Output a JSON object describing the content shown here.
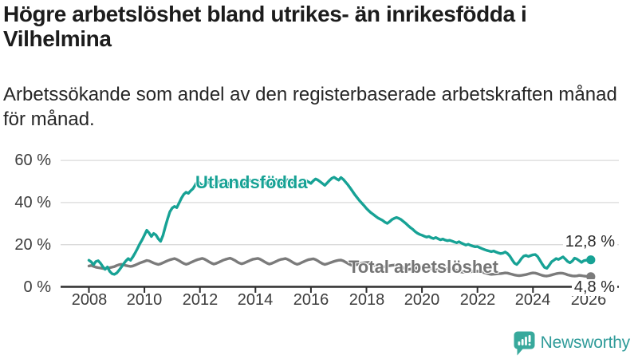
{
  "header": {
    "title_line1": "Högre arbetslöshet bland utrikes- än inrikesfödda i",
    "title_line2": "Vilhelmina",
    "subtitle_line1": "Arbetssökande som andel av den registerbaserade arbetskraften månad",
    "subtitle_line2": "för månad."
  },
  "footer": {
    "brand": "Newsworthy"
  },
  "colors": {
    "accent_teal": "#17a295",
    "series_gray": "#7b7b7b",
    "gridline": "#dadada",
    "axis": "#2e2e2e",
    "logo_badge": "#38a99c",
    "logo_text": "#2f9b99"
  },
  "chart_data": {
    "type": "line",
    "title": "Högre arbetslöshet bland utrikes- än inrikesfödda i Vilhelmina",
    "subtitle": "Arbetssökande som andel av den registerbaserade arbetskraften månad för månad.",
    "xlabel": "",
    "ylabel": "",
    "x_start_year": 2008,
    "x_step_months": 1,
    "x_ticks": [
      2008,
      2010,
      2012,
      2014,
      2016,
      2018,
      2020,
      2022,
      2024,
      2026
    ],
    "x_tick_labels": [
      "2008",
      "2010",
      "2012",
      "2014",
      "2016",
      "2018",
      "2020",
      "2022",
      "2024",
      "2026"
    ],
    "y_ticks": [
      0,
      20,
      40,
      60
    ],
    "y_tick_labels": [
      "0 %",
      "20 %",
      "40 %",
      "60 %"
    ],
    "ylim": [
      0,
      62
    ],
    "xlim": [
      2007.8,
      2026.6
    ],
    "grid": "horizontal",
    "legend_position": "inline-labels",
    "series": [
      {
        "name": "Utlandsfödda",
        "label": "Utlandsfödda",
        "color": "#17a295",
        "end_label": "12,8 %",
        "end_value": 12.8,
        "values": [
          12.6,
          11.8,
          10.5,
          12.0,
          12.4,
          11.2,
          9.6,
          8.3,
          9.4,
          7.3,
          6.2,
          5.9,
          6.5,
          7.8,
          9.3,
          10.9,
          12.3,
          13.4,
          12.6,
          14.2,
          16.1,
          18.2,
          20.4,
          22.3,
          24.5,
          26.8,
          25.6,
          23.9,
          25.3,
          24.6,
          22.8,
          21.6,
          24.3,
          28.4,
          32.2,
          35.6,
          37.4,
          38.2,
          37.6,
          39.8,
          42.1,
          43.9,
          44.9,
          44.4,
          45.6,
          46.6,
          48.4,
          50.4,
          49.1,
          47.6,
          48.9,
          50.1,
          49.3,
          48.2,
          47.4,
          48.6,
          49.8,
          50.6,
          49.9,
          49.1,
          48.3,
          49.6,
          50.7,
          50.0,
          49.1,
          48.0,
          47.2,
          48.3,
          49.8,
          51.0,
          50.3,
          49.5,
          48.7,
          50.0,
          50.9,
          50.2,
          49.4,
          48.5,
          47.7,
          48.8,
          50.1,
          50.9,
          50.1,
          49.3,
          48.6,
          49.8,
          50.8,
          50.3,
          49.5,
          48.6,
          47.8,
          48.9,
          50.2,
          51.0,
          50.4,
          49.7,
          49.1,
          50.3,
          51.2,
          50.7,
          49.9,
          49.0,
          48.2,
          49.3,
          50.5,
          51.5,
          52.0,
          51.3,
          50.7,
          51.9,
          51.0,
          49.7,
          48.4,
          46.9,
          45.3,
          43.7,
          42.3,
          40.9,
          39.7,
          38.5,
          37.2,
          36.1,
          35.1,
          34.3,
          33.5,
          32.7,
          32.1,
          31.5,
          30.7,
          30.1,
          30.9,
          31.9,
          32.5,
          32.9,
          32.5,
          31.9,
          31.0,
          30.1,
          29.1,
          28.1,
          27.3,
          26.3,
          25.5,
          24.9,
          24.5,
          24.0,
          23.6,
          23.9,
          23.3,
          22.9,
          23.4,
          22.8,
          22.3,
          22.7,
          22.2,
          21.9,
          22.1,
          21.7,
          21.3,
          20.9,
          21.4,
          20.8,
          20.3,
          19.8,
          20.2,
          19.7,
          19.3,
          19.0,
          19.1,
          18.6,
          18.1,
          17.7,
          17.3,
          17.0,
          16.7,
          17.0,
          16.5,
          16.1,
          15.8,
          16.0,
          16.5,
          15.8,
          14.6,
          12.8,
          11.2,
          10.6,
          11.8,
          13.4,
          14.6,
          14.9,
          14.4,
          14.8,
          15.2,
          15.3,
          14.4,
          12.6,
          10.8,
          9.2,
          8.8,
          10.2,
          11.8,
          12.6,
          13.4,
          13.0,
          13.6,
          14.2,
          13.2,
          12.0,
          11.4,
          12.2,
          13.6,
          13.2,
          12.4,
          11.6,
          12.4,
          12.6,
          12.7,
          12.8
        ]
      },
      {
        "name": "Total arbetslöshet",
        "label": "Total arbetslöshet",
        "color": "#7b7b7b",
        "end_label": "4,8 %",
        "end_value": 4.8,
        "values": [
          9.9,
          10.1,
          9.7,
          9.3,
          9.1,
          8.9,
          8.7,
          8.6,
          8.9,
          9.1,
          9.3,
          9.6,
          10.1,
          10.5,
          10.7,
          10.4,
          10.1,
          9.9,
          9.7,
          9.9,
          10.3,
          10.8,
          11.3,
          11.7,
          12.1,
          12.5,
          12.3,
          11.8,
          11.3,
          10.9,
          10.6,
          10.9,
          11.4,
          11.9,
          12.4,
          12.8,
          13.1,
          13.4,
          13.0,
          12.4,
          11.7,
          11.1,
          10.7,
          11.0,
          11.5,
          12.0,
          12.5,
          12.9,
          13.2,
          13.5,
          13.1,
          12.5,
          11.8,
          11.2,
          10.8,
          11.1,
          11.6,
          12.1,
          12.6,
          13.0,
          13.3,
          13.6,
          13.2,
          12.6,
          11.9,
          11.3,
          10.9,
          11.2,
          11.7,
          12.2,
          12.7,
          13.1,
          13.3,
          13.5,
          13.1,
          12.5,
          11.8,
          11.2,
          10.8,
          11.1,
          11.6,
          12.1,
          12.6,
          13.0,
          13.2,
          13.4,
          13.0,
          12.4,
          11.7,
          11.1,
          10.7,
          11.0,
          11.5,
          12.0,
          12.5,
          12.9,
          13.1,
          13.3,
          12.9,
          12.3,
          11.6,
          11.0,
          10.6,
          10.9,
          11.3,
          11.7,
          12.1,
          12.4,
          12.6,
          12.7,
          12.3,
          11.7,
          11.1,
          10.5,
          10.1,
          10.3,
          10.6,
          10.9,
          11.2,
          11.4,
          11.5,
          11.6,
          11.2,
          10.6,
          10.0,
          9.5,
          9.1,
          9.3,
          9.6,
          9.8,
          10.0,
          10.2,
          10.3,
          10.4,
          10.0,
          9.5,
          9.0,
          8.5,
          8.2,
          8.4,
          8.6,
          8.8,
          9.0,
          9.2,
          9.3,
          9.4,
          9.1,
          8.9,
          8.6,
          8.3,
          8.0,
          8.1,
          8.3,
          8.4,
          8.5,
          8.6,
          8.6,
          8.5,
          8.2,
          7.8,
          7.4,
          7.1,
          6.9,
          7.0,
          7.1,
          7.2,
          7.3,
          7.4,
          7.4,
          7.3,
          7.0,
          6.7,
          6.4,
          6.1,
          5.9,
          6.0,
          6.1,
          6.2,
          6.3,
          6.4,
          6.6,
          6.5,
          6.2,
          5.9,
          5.6,
          5.4,
          5.3,
          5.4,
          5.6,
          5.8,
          6.1,
          6.4,
          6.6,
          6.5,
          6.2,
          5.8,
          5.4,
          5.2,
          5.1,
          5.3,
          5.6,
          5.9,
          6.2,
          6.4,
          6.5,
          6.4,
          6.1,
          5.7,
          5.4,
          5.2,
          5.1,
          5.2,
          5.4,
          5.3,
          5.1,
          5.0,
          4.9,
          4.8
        ]
      }
    ]
  }
}
